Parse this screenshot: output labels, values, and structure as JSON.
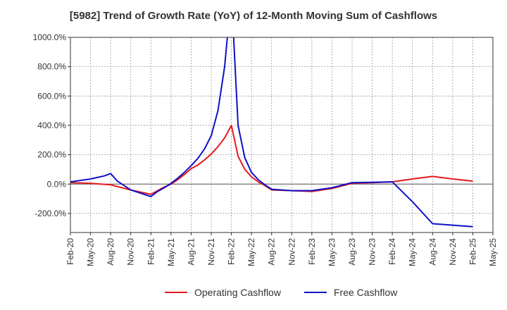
{
  "chart_data": {
    "type": "line",
    "title": "[5982]  Trend of Growth Rate (YoY) of 12-Month Moving Sum of Cashflows",
    "xlabel": "",
    "ylabel": "",
    "ylim": [
      -330,
      1000
    ],
    "x_tick_labels": [
      "Feb-20",
      "May-20",
      "Aug-20",
      "Nov-20",
      "Feb-21",
      "May-21",
      "Aug-21",
      "Nov-21",
      "Feb-22",
      "May-22",
      "Aug-22",
      "Nov-22",
      "Feb-23",
      "May-23",
      "Aug-23",
      "Nov-23",
      "Feb-24",
      "May-24",
      "Aug-24",
      "Nov-24",
      "Feb-25",
      "May-25"
    ],
    "y_ticks": [
      -200,
      0,
      200,
      400,
      600,
      800,
      1000
    ],
    "y_tick_labels": [
      "-200.0%",
      "0.0%",
      "200.0%",
      "400.0%",
      "600.0%",
      "800.0%",
      "1000.0%"
    ],
    "grid": true,
    "legend_position": "bottom",
    "series": [
      {
        "name": "Operating Cashflow",
        "color": "#e31a1c",
        "points": [
          [
            "Feb-20",
            10
          ],
          [
            "May-20",
            5
          ],
          [
            "Aug-20",
            -5
          ],
          [
            "Nov-20",
            -40
          ],
          [
            "Feb-21",
            -70
          ],
          [
            "Mar-21",
            -45
          ],
          [
            "Apr-21",
            -20
          ],
          [
            "May-21",
            0
          ],
          [
            "Jun-21",
            30
          ],
          [
            "Jul-21",
            65
          ],
          [
            "Aug-21",
            105
          ],
          [
            "Sep-21",
            130
          ],
          [
            "Oct-21",
            165
          ],
          [
            "Nov-21",
            205
          ],
          [
            "Dec-21",
            255
          ],
          [
            "Jan-22",
            315
          ],
          [
            "Feb-22",
            400
          ],
          [
            "Mar-22",
            190
          ],
          [
            "Apr-22",
            100
          ],
          [
            "May-22",
            50
          ],
          [
            "Jun-22",
            15
          ],
          [
            "Jul-22",
            -10
          ],
          [
            "Aug-22",
            -40
          ],
          [
            "Nov-22",
            -45
          ],
          [
            "Feb-23",
            -50
          ],
          [
            "May-23",
            -30
          ],
          [
            "Aug-23",
            5
          ],
          [
            "Nov-23",
            10
          ],
          [
            "Feb-24",
            15
          ],
          [
            "May-24",
            35
          ],
          [
            "Aug-24",
            52
          ],
          [
            "Nov-24",
            35
          ],
          [
            "Feb-25",
            20
          ]
        ]
      },
      {
        "name": "Free Cashflow",
        "color": "#1010c8",
        "points": [
          [
            "Feb-20",
            15
          ],
          [
            "May-20",
            35
          ],
          [
            "Jun-20",
            45
          ],
          [
            "Jul-20",
            55
          ],
          [
            "Aug-20",
            72
          ],
          [
            "Sep-20",
            20
          ],
          [
            "Nov-20",
            -40
          ],
          [
            "Feb-21",
            -85
          ],
          [
            "Mar-21",
            -50
          ],
          [
            "Apr-21",
            -25
          ],
          [
            "May-21",
            5
          ],
          [
            "Jun-21",
            40
          ],
          [
            "Jul-21",
            80
          ],
          [
            "Aug-21",
            125
          ],
          [
            "Sep-21",
            175
          ],
          [
            "Oct-21",
            240
          ],
          [
            "Nov-21",
            330
          ],
          [
            "Dec-21",
            500
          ],
          [
            "Jan-22",
            800
          ],
          [
            "Feb-22",
            1300
          ],
          [
            "Mar-22",
            400
          ],
          [
            "Apr-22",
            180
          ],
          [
            "May-22",
            80
          ],
          [
            "Jun-22",
            30
          ],
          [
            "Jul-22",
            -5
          ],
          [
            "Aug-22",
            -35
          ],
          [
            "Nov-22",
            -45
          ],
          [
            "Feb-23",
            -45
          ],
          [
            "May-23",
            -25
          ],
          [
            "Aug-23",
            10
          ],
          [
            "Nov-23",
            12
          ],
          [
            "Feb-24",
            15
          ],
          [
            "May-24",
            -120
          ],
          [
            "Aug-24",
            -270
          ],
          [
            "Nov-24",
            -280
          ],
          [
            "Feb-25",
            -290
          ]
        ]
      }
    ]
  }
}
